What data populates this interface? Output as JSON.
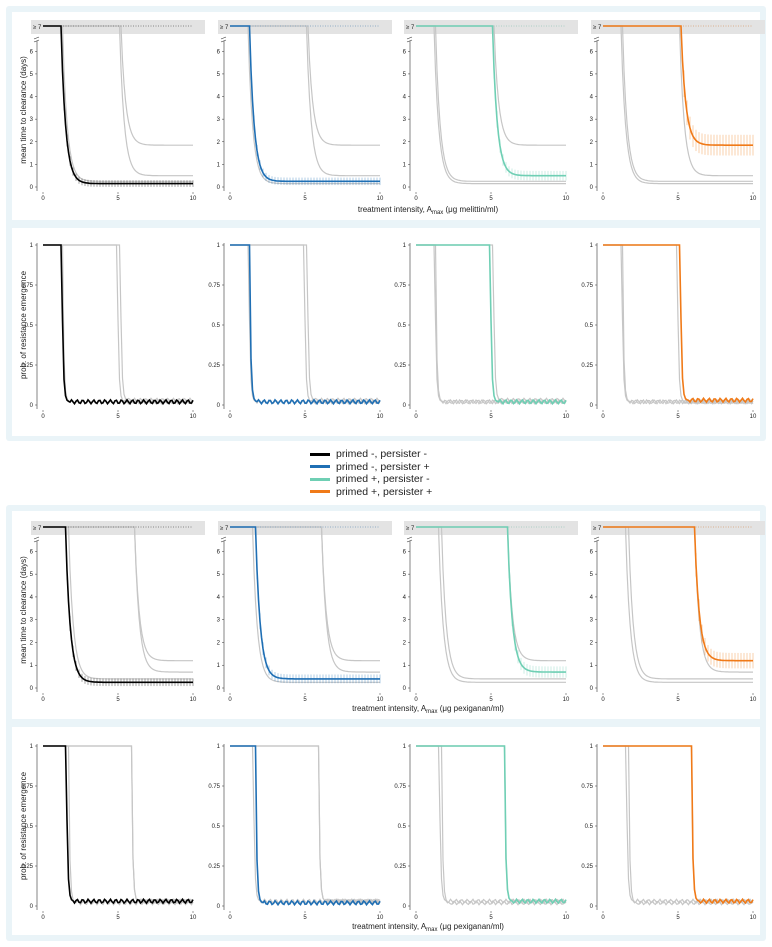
{
  "colors": {
    "primed_minus_persister_minus": "#000000",
    "primed_minus_persister_plus": "#1f6fb4",
    "primed_plus_persister_minus": "#6fcfb4",
    "primed_plus_persister_plus": "#f07a18",
    "background_curve": "#c6c6c6",
    "band": "#eaf4f8"
  },
  "legend": {
    "items": [
      {
        "label": "primed -, persister -",
        "color": "#000000"
      },
      {
        "label": "primed -, persister +",
        "color": "#1f6fb4"
      },
      {
        "label": "primed +, persister -",
        "color": "#6fcfb4"
      },
      {
        "label": "primed +, persister +",
        "color": "#f07a18"
      }
    ]
  },
  "labels": {
    "ylabel_time": "mean time to clearance (days)",
    "ylabel_prob": "prob. of resistance emergence",
    "xlabel_melittin_prefix": "treatment intensity, A",
    "xlabel_melittin_sub": "max",
    "xlabel_melittin_suffix": " (μg melittin/ml)",
    "xlabel_pexiganan_prefix": "treatment intensity, A",
    "xlabel_pexiganan_sub": "max",
    "xlabel_pexiganan_suffix": " (μg pexiganan/ml)",
    "cap_label": "≥ 7"
  },
  "chart_data": {
    "type": "line",
    "xlim": [
      0,
      10
    ],
    "x_ticks": [
      "0",
      "5",
      "10"
    ],
    "y_ticks_time": [
      "0",
      "1",
      "2",
      "3",
      "4",
      "5",
      "6"
    ],
    "y_ticks_prob": [
      "0",
      "0.25",
      "0.5",
      "0.75",
      "1"
    ],
    "ylim_time": [
      0,
      7
    ],
    "ylim_prob": [
      0,
      1
    ],
    "scenarios": [
      "primed -, persister -",
      "primed -, persister +",
      "primed +, persister -",
      "primed +, persister +"
    ],
    "melittin": {
      "time": [
        {
          "threshold": 1.2,
          "plateau": 0.15
        },
        {
          "threshold": 1.3,
          "plateau": 0.25
        },
        {
          "threshold": 5.1,
          "plateau": 0.5
        },
        {
          "threshold": 5.2,
          "plateau": 1.85
        }
      ],
      "prob": [
        {
          "threshold": 1.25,
          "floor": 0.02
        },
        {
          "threshold": 1.3,
          "floor": 0.02
        },
        {
          "threshold": 4.95,
          "floor": 0.02
        },
        {
          "threshold": 5.15,
          "floor": 0.03
        }
      ]
    },
    "pexiganan": {
      "time": [
        {
          "threshold": 1.5,
          "plateau": 0.25
        },
        {
          "threshold": 1.7,
          "plateau": 0.4
        },
        {
          "threshold": 6.1,
          "plateau": 0.7
        },
        {
          "threshold": 6.1,
          "plateau": 1.2
        }
      ],
      "prob": [
        {
          "threshold": 1.55,
          "floor": 0.03
        },
        {
          "threshold": 1.7,
          "floor": 0.02
        },
        {
          "threshold": 5.9,
          "floor": 0.03
        },
        {
          "threshold": 5.9,
          "floor": 0.03
        }
      ]
    }
  }
}
